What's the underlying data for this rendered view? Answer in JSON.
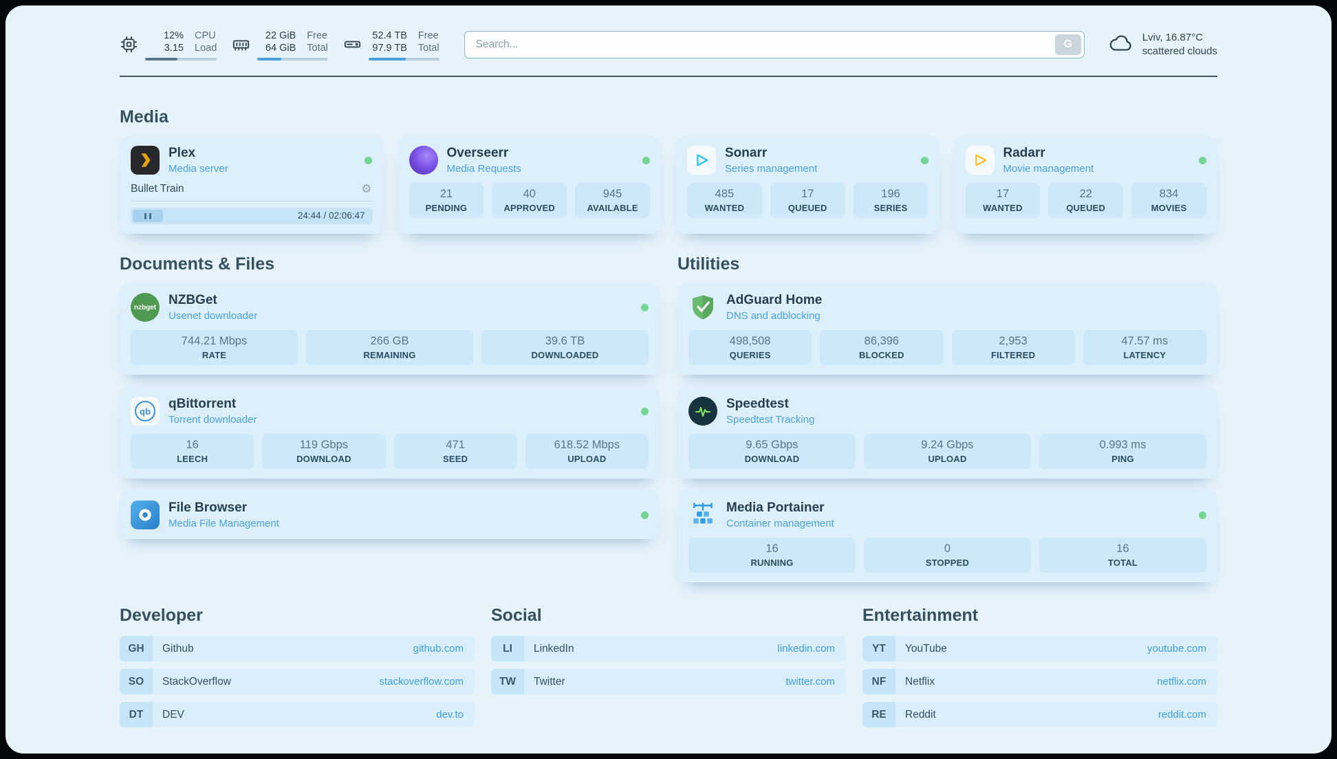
{
  "topbar": {
    "cpu": {
      "value1": "12%",
      "value2": "3.15",
      "label1": "CPU",
      "label2": "Load",
      "bar_percent": 45
    },
    "memory": {
      "value1": "22 GiB",
      "value2": "64 GiB",
      "label1": "Free",
      "label2": "Total",
      "bar_percent": 34
    },
    "disk": {
      "value1": "52.4 TB",
      "value2": "97.9 TB",
      "label1": "Free",
      "label2": "Total",
      "bar_percent": 53
    },
    "search": {
      "placeholder": "Search...",
      "button_label": "G"
    },
    "weather": {
      "location": "Lviv, 16.87°C",
      "condition": "scattered clouds"
    }
  },
  "sections": {
    "media": "Media",
    "documents": "Documents & Files",
    "utilities": "Utilities",
    "developer": "Developer",
    "social": "Social",
    "entertainment": "Entertainment"
  },
  "icons": {
    "gear": "⚙",
    "nzbget_text": "nzbget",
    "qbit_text": "qb"
  },
  "services": {
    "plex": {
      "title": "Plex",
      "subtitle": "Media server",
      "now_playing": "Bullet Train",
      "time": "24:44 / 02:06:47"
    },
    "overseerr": {
      "title": "Overseerr",
      "subtitle": "Media Requests",
      "stats": [
        {
          "value": "21",
          "label": "PENDING"
        },
        {
          "value": "40",
          "label": "APPROVED"
        },
        {
          "value": "945",
          "label": "AVAILABLE"
        }
      ]
    },
    "sonarr": {
      "title": "Sonarr",
      "subtitle": "Series management",
      "stats": [
        {
          "value": "485",
          "label": "WANTED"
        },
        {
          "value": "17",
          "label": "QUEUED"
        },
        {
          "value": "196",
          "label": "SERIES"
        }
      ]
    },
    "radarr": {
      "title": "Radarr",
      "subtitle": "Movie management",
      "stats": [
        {
          "value": "17",
          "label": "WANTED"
        },
        {
          "value": "22",
          "label": "QUEUED"
        },
        {
          "value": "834",
          "label": "MOVIES"
        }
      ]
    },
    "nzbget": {
      "title": "NZBGet",
      "subtitle": "Usenet downloader",
      "stats": [
        {
          "value": "744.21 Mbps",
          "label": "RATE"
        },
        {
          "value": "266 GB",
          "label": "REMAINING"
        },
        {
          "value": "39.6 TB",
          "label": "DOWNLOADED"
        }
      ]
    },
    "qbittorrent": {
      "title": "qBittorrent",
      "subtitle": "Torrent downloader",
      "stats": [
        {
          "value": "16",
          "label": "LEECH"
        },
        {
          "value": "119 Gbps",
          "label": "DOWNLOAD"
        },
        {
          "value": "471",
          "label": "SEED"
        },
        {
          "value": "618.52 Mbps",
          "label": "UPLOAD"
        }
      ]
    },
    "filebrowser": {
      "title": "File Browser",
      "subtitle": "Media File Management"
    },
    "adguard": {
      "title": "AdGuard Home",
      "subtitle": "DNS and adblocking",
      "stats": [
        {
          "value": "498,508",
          "label": "QUERIES"
        },
        {
          "value": "86,396",
          "label": "BLOCKED"
        },
        {
          "value": "2,953",
          "label": "FILTERED"
        },
        {
          "value": "47.57 ms",
          "label": "LATENCY"
        }
      ]
    },
    "speedtest": {
      "title": "Speedtest",
      "subtitle": "Speedtest Tracking",
      "stats": [
        {
          "value": "9.65 Gbps",
          "label": "DOWNLOAD"
        },
        {
          "value": "9.24 Gbps",
          "label": "UPLOAD"
        },
        {
          "value": "0.993 ms",
          "label": "PING"
        }
      ]
    },
    "portainer": {
      "title": "Media Portainer",
      "subtitle": "Container management",
      "stats": [
        {
          "value": "16",
          "label": "RUNNING"
        },
        {
          "value": "0",
          "label": "STOPPED"
        },
        {
          "value": "16",
          "label": "TOTAL"
        }
      ]
    }
  },
  "bookmarks": {
    "developer": [
      {
        "abbr": "GH",
        "name": "Github",
        "url": "github.com"
      },
      {
        "abbr": "SO",
        "name": "StackOverflow",
        "url": "stackoverflow.com"
      },
      {
        "abbr": "DT",
        "name": "DEV",
        "url": "dev.to"
      }
    ],
    "social": [
      {
        "abbr": "LI",
        "name": "LinkedIn",
        "url": "linkedin.com"
      },
      {
        "abbr": "TW",
        "name": "Twitter",
        "url": "twitter.com"
      }
    ],
    "entertainment": [
      {
        "abbr": "YT",
        "name": "YouTube",
        "url": "youtube.com"
      },
      {
        "abbr": "NF",
        "name": "Netflix",
        "url": "netflix.com"
      },
      {
        "abbr": "RE",
        "name": "Reddit",
        "url": "reddit.com"
      }
    ]
  }
}
